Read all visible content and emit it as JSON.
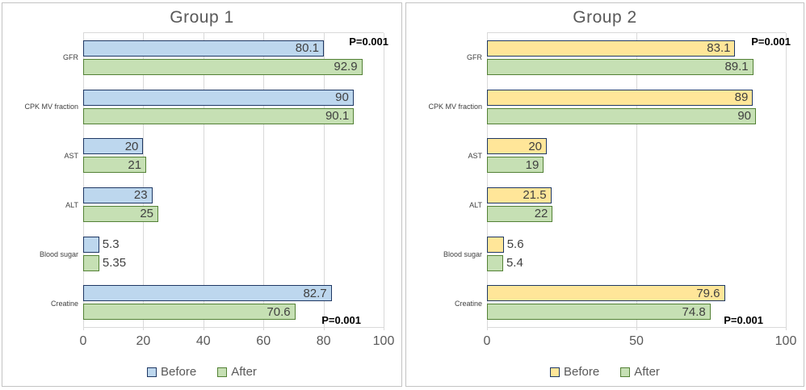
{
  "chart_data": [
    {
      "type": "bar",
      "orientation": "horizontal",
      "title": "Group 1",
      "categories": [
        "GFR",
        "CPK MV fraction",
        "AST",
        "ALT",
        "Blood sugar",
        "Creatine"
      ],
      "series": [
        {
          "name": "Before",
          "fill": "#BDD7EE",
          "border": "#1F3864",
          "values": [
            80.1,
            90,
            20,
            23,
            5.3,
            82.7
          ]
        },
        {
          "name": "After",
          "fill": "#C6E0B4",
          "border": "#538135",
          "values": [
            92.9,
            90.1,
            21,
            25,
            5.35,
            70.6
          ]
        }
      ],
      "annotations": [
        {
          "text": "P=0.001",
          "position": "top-right"
        },
        {
          "text": "P=0.001",
          "position": "bottom-right"
        }
      ],
      "x_ticks": [
        0,
        20,
        40,
        60,
        80,
        100
      ],
      "xlim": [
        0,
        100
      ],
      "xlabel": "",
      "ylabel": "",
      "gridlines": true,
      "legend_position": "bottom"
    },
    {
      "type": "bar",
      "orientation": "horizontal",
      "title": "Group 2",
      "categories": [
        "GFR",
        "CPK MV fraction",
        "AST",
        "ALT",
        "Blood sugar",
        "Creatine"
      ],
      "series": [
        {
          "name": "Before",
          "fill": "#FFE699",
          "border": "#1F3864",
          "values": [
            83.1,
            89,
            20,
            21.5,
            5.6,
            79.6
          ]
        },
        {
          "name": "After",
          "fill": "#C6E0B4",
          "border": "#538135",
          "values": [
            89.1,
            90,
            19,
            22,
            5.4,
            74.8
          ]
        }
      ],
      "annotations": [
        {
          "text": "P=0.001",
          "position": "top-right"
        },
        {
          "text": "P=0.001",
          "position": "bottom-right"
        }
      ],
      "x_ticks": [
        0,
        50,
        100
      ],
      "xlim": [
        0,
        100
      ],
      "xlabel": "",
      "ylabel": "",
      "gridlines": true,
      "legend_position": "bottom"
    }
  ],
  "style_colors": {
    "gridline": "#d9d9d9",
    "axis_text": "#595959",
    "title_text": "#595959",
    "data_label_text": "#404040",
    "panel_border": "#c3c3c3",
    "annotation_text": "#000000"
  }
}
